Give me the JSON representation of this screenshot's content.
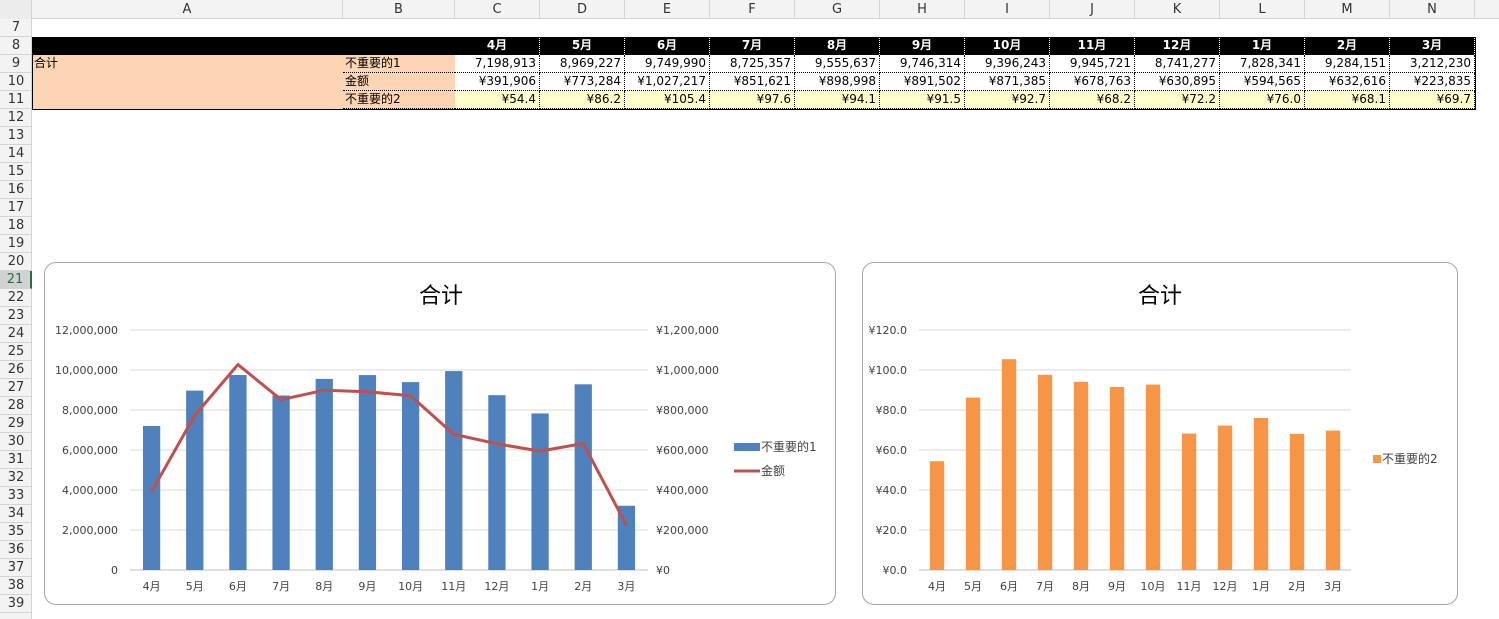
{
  "columns": [
    "A",
    "B",
    "C",
    "D",
    "E",
    "F",
    "G",
    "H",
    "I",
    "J",
    "K",
    "L",
    "M",
    "N"
  ],
  "rows": [
    "7",
    "8",
    "9",
    "10",
    "11",
    "12",
    "13",
    "14",
    "15",
    "16",
    "17",
    "18",
    "19",
    "20",
    "21",
    "22",
    "23",
    "24",
    "25",
    "26",
    "27",
    "28",
    "29",
    "30",
    "31",
    "32",
    "33",
    "34",
    "35",
    "36",
    "37",
    "38",
    "39"
  ],
  "selected_row": "21",
  "table": {
    "months": [
      "4月",
      "5月",
      "6月",
      "7月",
      "8月",
      "9月",
      "10月",
      "11月",
      "12月",
      "1月",
      "2月",
      "3月"
    ],
    "group_label": "合计",
    "row_labels": [
      "不重要的1",
      "金额",
      "不重要的2"
    ],
    "row1": [
      "7,198,913",
      "8,969,227",
      "9,749,990",
      "8,725,357",
      "9,555,637",
      "9,746,314",
      "9,396,243",
      "9,945,721",
      "8,741,277",
      "7,828,341",
      "9,284,151",
      "3,212,230"
    ],
    "row2": [
      "¥391,906",
      "¥773,284",
      "¥1,027,217",
      "¥851,621",
      "¥898,998",
      "¥891,502",
      "¥871,385",
      "¥678,763",
      "¥630,895",
      "¥594,565",
      "¥632,616",
      "¥223,835"
    ],
    "row3": [
      "¥54.4",
      "¥86.2",
      "¥105.4",
      "¥97.6",
      "¥94.1",
      "¥91.5",
      "¥92.7",
      "¥68.2",
      "¥72.2",
      "¥76.0",
      "¥68.1",
      "¥69.7"
    ]
  },
  "chart_data": [
    {
      "type": "bar",
      "title": "合计",
      "categories": [
        "4月",
        "5月",
        "6月",
        "7月",
        "8月",
        "9月",
        "10月",
        "11月",
        "12月",
        "1月",
        "2月",
        "3月"
      ],
      "series": [
        {
          "name": "不重要的1",
          "type": "bar",
          "axis": "left",
          "color": "#4f81bd",
          "values": [
            7198913,
            8969227,
            9749990,
            8725357,
            9555637,
            9746314,
            9396243,
            9945721,
            8741277,
            7828341,
            9284151,
            3212230
          ]
        },
        {
          "name": "金额",
          "type": "line",
          "axis": "right",
          "color": "#c0504d",
          "values": [
            391906,
            773284,
            1027217,
            851621,
            898998,
            891502,
            871385,
            678763,
            630895,
            594565,
            632616,
            223835
          ]
        }
      ],
      "ylim": [
        0,
        12000000
      ],
      "y2lim": [
        0,
        1200000
      ],
      "yticks": [
        "0",
        "2,000,000",
        "4,000,000",
        "6,000,000",
        "8,000,000",
        "10,000,000",
        "12,000,000"
      ],
      "y2ticks": [
        "¥0",
        "¥200,000",
        "¥400,000",
        "¥600,000",
        "¥800,000",
        "¥1,000,000",
        "¥1,200,000"
      ],
      "grid": true,
      "legend": "right"
    },
    {
      "type": "bar",
      "title": "合计",
      "categories": [
        "4月",
        "5月",
        "6月",
        "7月",
        "8月",
        "9月",
        "10月",
        "11月",
        "12月",
        "1月",
        "2月",
        "3月"
      ],
      "series": [
        {
          "name": "不重要的2",
          "color": "#f79646",
          "values": [
            54.4,
            86.2,
            105.4,
            97.6,
            94.1,
            91.5,
            92.7,
            68.2,
            72.2,
            76.0,
            68.1,
            69.7
          ]
        }
      ],
      "ylim": [
        0,
        120
      ],
      "yticks": [
        "¥0.0",
        "¥20.0",
        "¥40.0",
        "¥60.0",
        "¥80.0",
        "¥100.0",
        "¥120.0"
      ],
      "grid": true,
      "legend": "right"
    }
  ]
}
